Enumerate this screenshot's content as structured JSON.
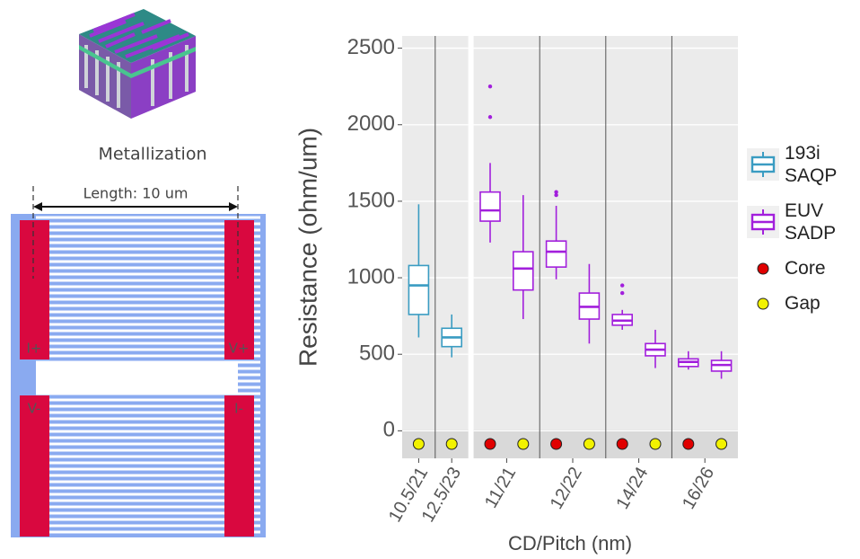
{
  "diagram": {
    "caption": "Metallization",
    "length_label": "Length: 10 um",
    "pads": [
      "I+",
      "V+",
      "V-",
      "I-"
    ]
  },
  "chart_data": {
    "type": "box",
    "y_label": "Resistance (ohm/um)",
    "x_label": "CD/Pitch (nm)",
    "ylim": [
      -180,
      2580
    ],
    "yticks": [
      0,
      500,
      1000,
      1500,
      2000,
      2500
    ],
    "grid": true,
    "markers": [
      {
        "name": "Core",
        "color": "#e00000"
      },
      {
        "name": "Gap",
        "color": "#f2f200"
      }
    ],
    "series": [
      {
        "name": "193i SAQP",
        "color": "#3a9cc2",
        "categories": [
          {
            "label": "10.5/21",
            "gap": {
              "low": 610,
              "q1": 760,
              "median": 950,
              "q3": 1080,
              "high": 1480,
              "outliers": []
            }
          },
          {
            "label": "12.5/23",
            "gap": {
              "low": 480,
              "q1": 550,
              "median": 610,
              "q3": 670,
              "high": 760,
              "outliers": []
            }
          }
        ]
      },
      {
        "name": "EUV SADP",
        "color": "#a21fdc",
        "categories": [
          {
            "label": "11/21",
            "core": {
              "low": 1230,
              "q1": 1370,
              "median": 1440,
              "q3": 1560,
              "high": 1750,
              "outliers": [
                2050,
                2250
              ]
            },
            "gap": {
              "low": 730,
              "q1": 920,
              "median": 1060,
              "q3": 1170,
              "high": 1540,
              "outliers": []
            }
          },
          {
            "label": "12/22",
            "core": {
              "low": 990,
              "q1": 1070,
              "median": 1170,
              "q3": 1240,
              "high": 1470,
              "outliers": [
                1540,
                1560
              ]
            },
            "gap": {
              "low": 570,
              "q1": 730,
              "median": 810,
              "q3": 900,
              "high": 1090,
              "outliers": []
            }
          },
          {
            "label": "14/24",
            "core": {
              "low": 660,
              "q1": 690,
              "median": 720,
              "q3": 760,
              "high": 790,
              "outliers": [
                900,
                950
              ]
            },
            "gap": {
              "low": 410,
              "q1": 490,
              "median": 530,
              "q3": 570,
              "high": 660,
              "outliers": []
            }
          },
          {
            "label": "16/26",
            "core": {
              "low": 400,
              "q1": 420,
              "median": 450,
              "q3": 470,
              "high": 520,
              "outliers": []
            },
            "gap": {
              "low": 340,
              "q1": 390,
              "median": 430,
              "q3": 460,
              "high": 520,
              "outliers": []
            }
          }
        ]
      }
    ]
  }
}
